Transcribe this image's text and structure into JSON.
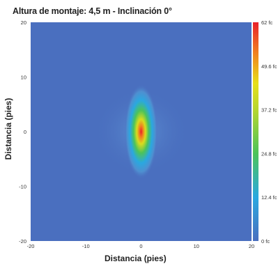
{
  "chart_data": {
    "type": "heatmap",
    "title": "Altura de montaje: 4,5 m - Inclinación 0°",
    "xlabel": "Distancia (pies)",
    "ylabel": "Distancia (pies)",
    "xlim": [
      -20,
      20
    ],
    "ylim": [
      -20,
      20
    ],
    "x_ticks": [
      "-20",
      "-10",
      "0",
      "10",
      "20"
    ],
    "y_ticks": [
      "20",
      "10",
      "0",
      "-10",
      "-20"
    ],
    "colorbar": {
      "min": 0,
      "max": 62,
      "unit": "fc",
      "tick_labels": [
        "62 fc",
        "49.6 fc",
        "37.2 fc",
        "24.8 fc",
        "12.4 fc",
        "0 fc"
      ],
      "colors": [
        "#4a6fbf",
        "#2aa8e0",
        "#4cc35a",
        "#d8dc1e",
        "#f08020",
        "#e8212a"
      ]
    },
    "peak": {
      "x": 0,
      "y": 0,
      "value": 62
    },
    "background_color": "#4a6fbf"
  }
}
